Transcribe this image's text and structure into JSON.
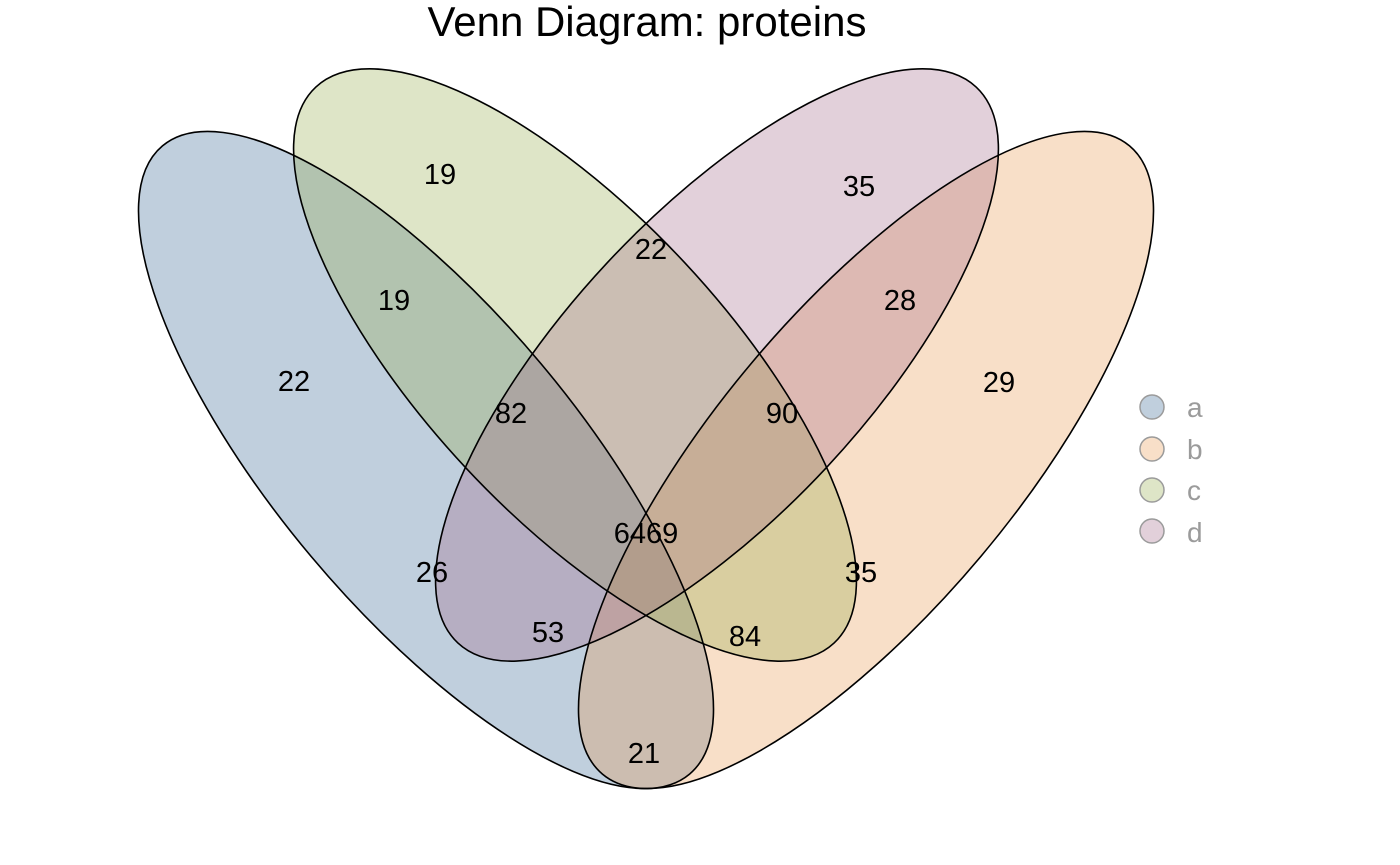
{
  "title": "Venn Diagram: proteins",
  "sets": [
    {
      "id": "a",
      "label": "a",
      "color": "#2D5F8F"
    },
    {
      "id": "b",
      "label": "b",
      "color": "#E8964A"
    },
    {
      "id": "c",
      "label": "c",
      "color": "#93A844"
    },
    {
      "id": "d",
      "label": "d",
      "color": "#A06586"
    }
  ],
  "intersection_colors": {
    "a_d": "#C3ABBC",
    "c_d": "#C3D0C8",
    "a_c": "#E1BBC0",
    "b_c": "#DDDCF0",
    "a_c_d": "#F5C6BA",
    "b_c_d": "#CDEDEB",
    "a_b_c": "#FDE2CB",
    "b_c_d_lower": "#F4C8DA",
    "a_b_c_d": "#C5E8FC",
    "b_d": "#D6C3B4",
    "a_b": "#F2E4C0"
  },
  "legend_text_color": "#9B9B9B",
  "counts": {
    "a_only": "22",
    "b_only": "29",
    "c_only": "19",
    "d_only": "35",
    "a_d": "19",
    "c_d": "22",
    "b_d": "28",
    "a_c_d": "82",
    "b_c_d": "90",
    "a_b_c_d": "6469",
    "a_c": "26",
    "b_c": "35",
    "a_b_c": "53",
    "a_b_d": "84",
    "a_b": "21"
  }
}
